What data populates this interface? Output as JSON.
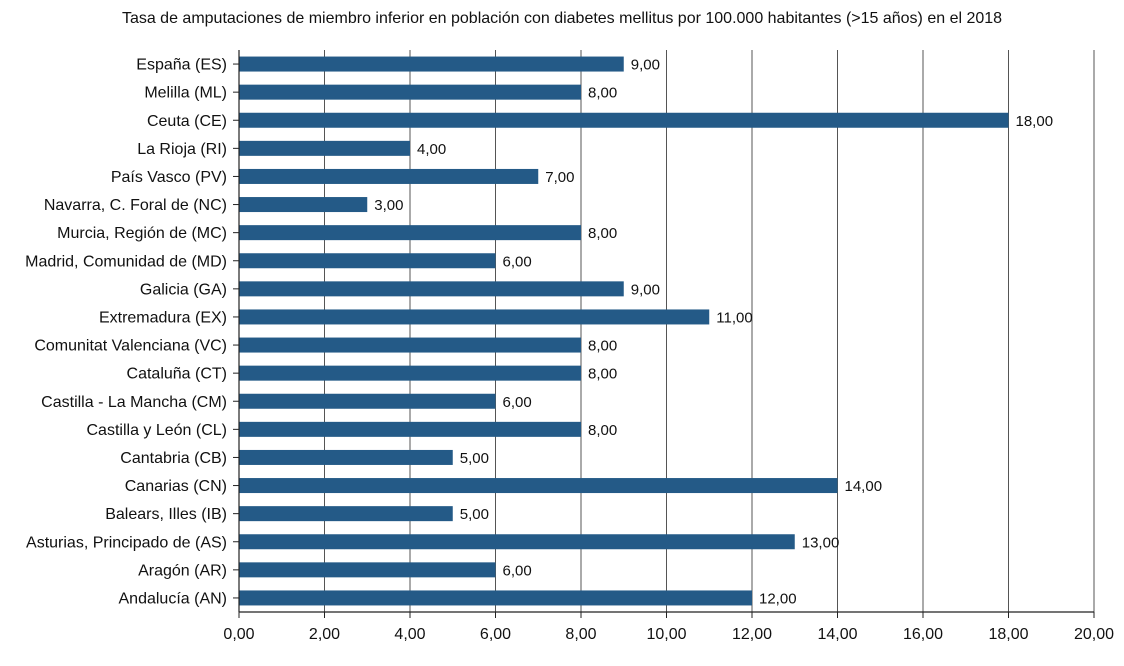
{
  "chart_data": {
    "type": "bar",
    "orientation": "horizontal",
    "title": "Tasa de amputaciones de miembro inferior en población con diabetes mellitus por 100.000 habitantes (>15 años) en el 2018",
    "categories": [
      "España (ES)",
      "Melilla (ML)",
      "Ceuta (CE)",
      "La Rioja (RI)",
      "País Vasco (PV)",
      "Navarra, C. Foral de (NC)",
      "Murcia, Región de (MC)",
      "Madrid, Comunidad de (MD)",
      "Galicia (GA)",
      "Extremadura (EX)",
      "Comunitat Valenciana (VC)",
      "Cataluña (CT)",
      "Castilla - La Mancha (CM)",
      "Castilla y León (CL)",
      "Cantabria (CB)",
      "Canarias (CN)",
      "Balears, Illes (IB)",
      "Asturias, Principado de (AS)",
      "Aragón (AR)",
      "Andalucía (AN)"
    ],
    "values": [
      9,
      8,
      18,
      4,
      7,
      3,
      8,
      6,
      9,
      11,
      8,
      8,
      6,
      8,
      5,
      14,
      5,
      13,
      6,
      12
    ],
    "value_labels": [
      "9,00",
      "8,00",
      "18,00",
      "4,00",
      "7,00",
      "3,00",
      "8,00",
      "6,00",
      "9,00",
      "11,00",
      "8,00",
      "8,00",
      "6,00",
      "8,00",
      "5,00",
      "14,00",
      "5,00",
      "13,00",
      "6,00",
      "12,00"
    ],
    "xlim": [
      0,
      20
    ],
    "xticks": [
      "0,00",
      "2,00",
      "4,00",
      "6,00",
      "8,00",
      "10,00",
      "12,00",
      "14,00",
      "16,00",
      "18,00",
      "20,00"
    ],
    "grid": "vertical",
    "bar_color": "#245a87",
    "grid_color": "#555555"
  }
}
